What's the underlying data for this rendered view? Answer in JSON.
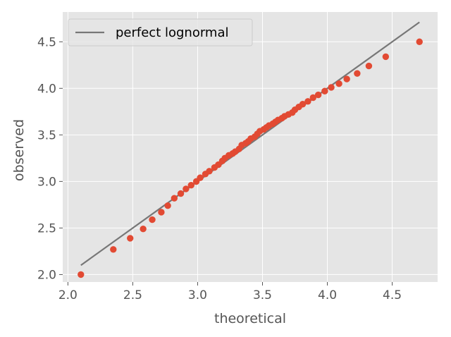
{
  "chart_data": {
    "type": "scatter",
    "xlabel": "theoretical",
    "ylabel": "observed",
    "xlim": [
      1.96,
      4.85
    ],
    "ylim": [
      1.92,
      4.82
    ],
    "xticks": [
      "2.0",
      "2.5",
      "3.0",
      "3.5",
      "4.0",
      "4.5"
    ],
    "yticks": [
      "2.0",
      "2.5",
      "3.0",
      "3.5",
      "4.0",
      "4.5"
    ],
    "grid": true,
    "legend_position": "top-left",
    "colors": {
      "points": "#e24a33",
      "line": "#777777",
      "background": "#e5e5e5",
      "grid": "#ffffff"
    },
    "series": [
      {
        "name": "perfect lognormal",
        "kind": "line",
        "x": [
          2.1,
          4.71
        ],
        "y": [
          2.1,
          4.71
        ]
      },
      {
        "kind": "scatter",
        "x": [
          2.1,
          2.35,
          2.48,
          2.58,
          2.65,
          2.72,
          2.77,
          2.82,
          2.87,
          2.91,
          2.95,
          2.99,
          3.02,
          3.06,
          3.09,
          3.13,
          3.16,
          3.19,
          3.21,
          3.24,
          3.27,
          3.29,
          3.32,
          3.34,
          3.37,
          3.39,
          3.41,
          3.44,
          3.46,
          3.48,
          3.51,
          3.53,
          3.55,
          3.58,
          3.6,
          3.62,
          3.65,
          3.67,
          3.7,
          3.73,
          3.75,
          3.78,
          3.81,
          3.85,
          3.89,
          3.93,
          3.98,
          4.03,
          4.09,
          4.15,
          4.23,
          4.32,
          4.45,
          4.71
        ],
        "y": [
          2.0,
          2.27,
          2.39,
          2.49,
          2.59,
          2.67,
          2.74,
          2.82,
          2.87,
          2.92,
          2.96,
          3.0,
          3.04,
          3.08,
          3.11,
          3.15,
          3.18,
          3.22,
          3.25,
          3.28,
          3.3,
          3.32,
          3.35,
          3.39,
          3.41,
          3.43,
          3.46,
          3.48,
          3.51,
          3.54,
          3.56,
          3.58,
          3.6,
          3.62,
          3.64,
          3.66,
          3.68,
          3.7,
          3.72,
          3.74,
          3.77,
          3.8,
          3.83,
          3.86,
          3.9,
          3.93,
          3.97,
          4.01,
          4.05,
          4.1,
          4.16,
          4.24,
          4.34,
          4.5
        ]
      }
    ]
  }
}
